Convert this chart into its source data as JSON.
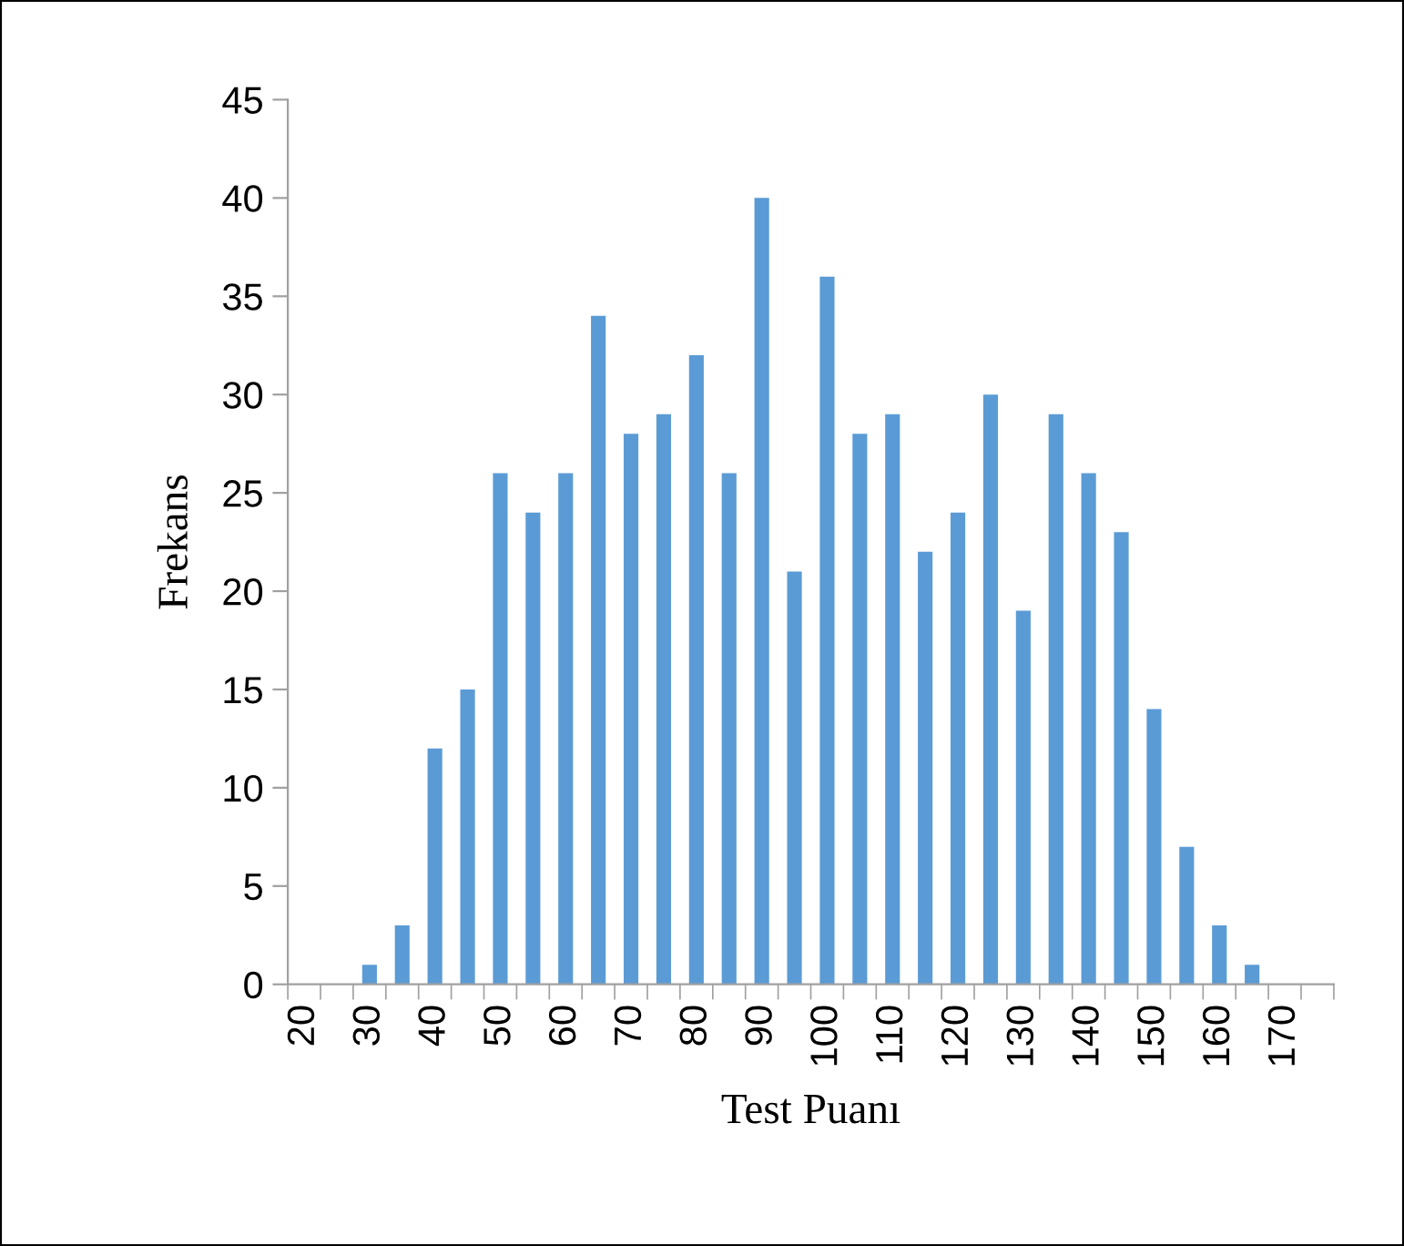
{
  "chart_data": {
    "type": "bar",
    "xlabel": "Test Puanı",
    "ylabel": "Frekans",
    "categories": [
      "20",
      null,
      "30",
      null,
      "40",
      null,
      "50",
      null,
      "60",
      null,
      "70",
      null,
      "80",
      null,
      "90",
      null,
      "100",
      null,
      "110",
      null,
      "120",
      null,
      "130",
      null,
      "140",
      null,
      "150",
      null,
      "160",
      null,
      "170",
      null
    ],
    "values": [
      0,
      0,
      1,
      3,
      12,
      15,
      26,
      24,
      26,
      34,
      28,
      29,
      32,
      26,
      40,
      21,
      36,
      28,
      29,
      22,
      24,
      30,
      19,
      29,
      26,
      23,
      14,
      7,
      3,
      1,
      0,
      0
    ],
    "color": "#5b9bd5",
    "ylim": [
      0,
      45
    ],
    "yticks": [
      0,
      5,
      10,
      15,
      20,
      25,
      30,
      35,
      40,
      45
    ],
    "grid": false
  }
}
